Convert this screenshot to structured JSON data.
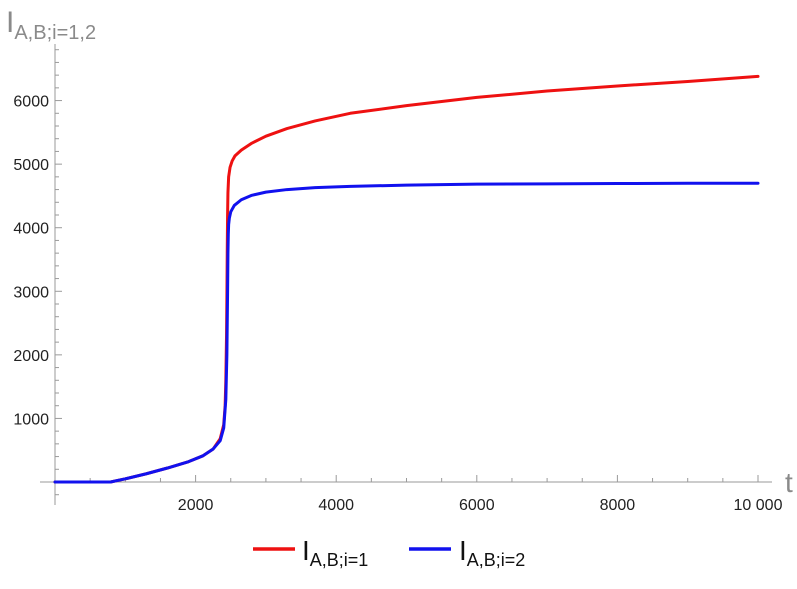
{
  "chart_data": {
    "type": "line",
    "ylabel": {
      "main": "I",
      "sub": "A,B;i=1,2"
    },
    "xlabel": "t",
    "xlim": [
      0,
      10000
    ],
    "ylim": [
      -350,
      6650
    ],
    "x_ticks": [
      {
        "value": 2000,
        "label": "2000"
      },
      {
        "value": 4000,
        "label": "4000"
      },
      {
        "value": 6000,
        "label": "6000"
      },
      {
        "value": 8000,
        "label": "8000"
      },
      {
        "value": 10000,
        "label": "10 000"
      }
    ],
    "y_ticks": [
      {
        "value": 1000,
        "label": "1000"
      },
      {
        "value": 2000,
        "label": "2000"
      },
      {
        "value": 3000,
        "label": "3000"
      },
      {
        "value": 4000,
        "label": "4000"
      },
      {
        "value": 5000,
        "label": "5000"
      },
      {
        "value": 6000,
        "label": "6000"
      }
    ],
    "series": [
      {
        "name": {
          "main": "I",
          "sub": "A,B;i=1"
        },
        "color": "#ee1111",
        "x": [
          0,
          790,
          1000,
          1300,
          1600,
          1900,
          2100,
          2250,
          2350,
          2400,
          2420,
          2430,
          2440,
          2445,
          2450,
          2455,
          2460,
          2470,
          2490,
          2520,
          2560,
          2650,
          2800,
          3000,
          3300,
          3700,
          4200,
          5000,
          6000,
          7000,
          8000,
          9000,
          10000
        ],
        "y": [
          0,
          0,
          50,
          130,
          220,
          320,
          410,
          520,
          680,
          900,
          1200,
          1600,
          2300,
          2900,
          3600,
          4200,
          4550,
          4800,
          4950,
          5050,
          5130,
          5220,
          5330,
          5440,
          5560,
          5680,
          5800,
          5920,
          6050,
          6150,
          6230,
          6300,
          6380
        ]
      },
      {
        "name": {
          "main": "I",
          "sub": "A,B;i=2"
        },
        "color": "#1111ee",
        "x": [
          0,
          790,
          1000,
          1300,
          1600,
          1900,
          2100,
          2250,
          2350,
          2400,
          2430,
          2445,
          2455,
          2460,
          2465,
          2470,
          2480,
          2500,
          2550,
          2650,
          2800,
          3000,
          3300,
          3700,
          4200,
          5000,
          6000,
          7000,
          8000,
          9000,
          10000
        ],
        "y": [
          0,
          0,
          50,
          130,
          220,
          320,
          410,
          520,
          650,
          850,
          1300,
          2000,
          3000,
          3600,
          3900,
          4050,
          4150,
          4250,
          4350,
          4440,
          4510,
          4560,
          4600,
          4630,
          4650,
          4670,
          4685,
          4690,
          4695,
          4700,
          4700
        ]
      }
    ],
    "grid": false,
    "legend_position": "bottom"
  }
}
